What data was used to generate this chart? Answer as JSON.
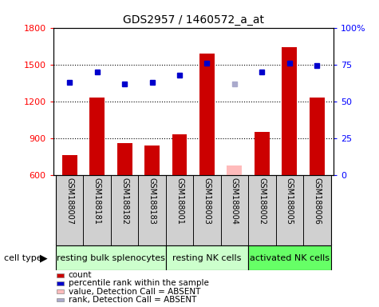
{
  "title": "GDS2957 / 1460572_a_at",
  "samples": [
    "GSM188007",
    "GSM188181",
    "GSM188182",
    "GSM188183",
    "GSM188001",
    "GSM188003",
    "GSM188004",
    "GSM188002",
    "GSM188005",
    "GSM188006"
  ],
  "bar_values": [
    760,
    1230,
    860,
    840,
    930,
    1590,
    680,
    950,
    1640,
    1230
  ],
  "bar_colors": [
    "#cc0000",
    "#cc0000",
    "#cc0000",
    "#cc0000",
    "#cc0000",
    "#cc0000",
    "#ffbbbb",
    "#cc0000",
    "#cc0000",
    "#cc0000"
  ],
  "dot_values_right": [
    63,
    70,
    62,
    63,
    68,
    76,
    62,
    70,
    76,
    74
  ],
  "dot_colors": [
    "#0000cc",
    "#0000cc",
    "#0000cc",
    "#0000cc",
    "#0000cc",
    "#0000cc",
    "#aaaacc",
    "#0000cc",
    "#0000cc",
    "#0000cc"
  ],
  "ylim_left": [
    600,
    1800
  ],
  "ylim_right": [
    0,
    100
  ],
  "yticks_left": [
    600,
    900,
    1200,
    1500,
    1800
  ],
  "yticks_right": [
    0,
    25,
    50,
    75,
    100
  ],
  "ytick_labels_right": [
    "0",
    "25",
    "50",
    "75",
    "100%"
  ],
  "hgrid_at": [
    900,
    1200,
    1500
  ],
  "groups": [
    {
      "label": "resting bulk splenocytes",
      "start": 0,
      "end": 3,
      "color": "#ccffcc"
    },
    {
      "label": "resting NK cells",
      "start": 4,
      "end": 6,
      "color": "#ccffcc"
    },
    {
      "label": "activated NK cells",
      "start": 7,
      "end": 9,
      "color": "#66ff66"
    }
  ],
  "cell_type_label": "cell type",
  "legend": [
    {
      "label": "count",
      "color": "#cc0000"
    },
    {
      "label": "percentile rank within the sample",
      "color": "#0000cc"
    },
    {
      "label": "value, Detection Call = ABSENT",
      "color": "#ffbbbb"
    },
    {
      "label": "rank, Detection Call = ABSENT",
      "color": "#aaaacc"
    }
  ],
  "sample_box_color": "#d0d0d0",
  "base_value": 600,
  "bar_width": 0.55
}
